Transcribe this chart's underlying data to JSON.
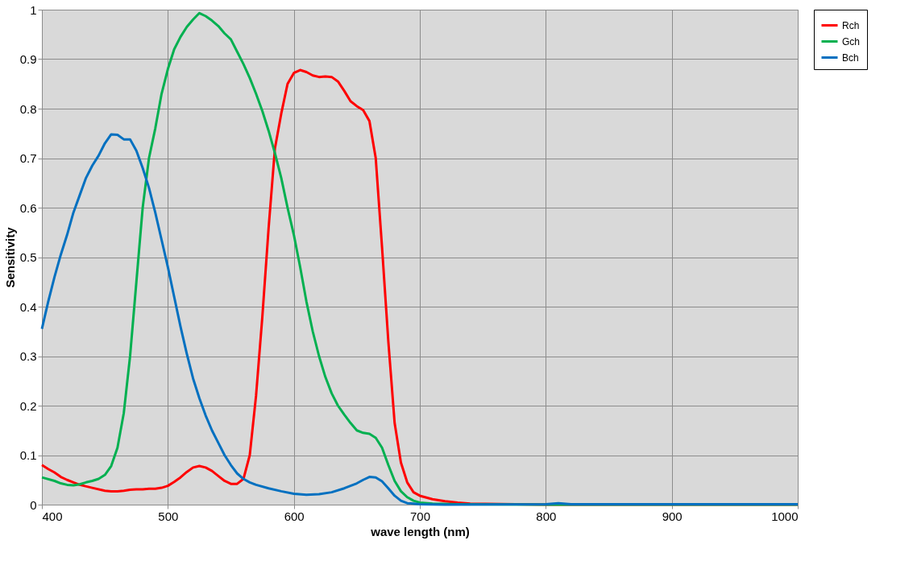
{
  "chart_data": {
    "type": "line",
    "xlabel": "wave length (nm)",
    "ylabel": "Sensitivity",
    "xlim": [
      400,
      1000
    ],
    "xticks": [
      400,
      500,
      600,
      700,
      800,
      900,
      1000
    ],
    "ylim": [
      0,
      1
    ],
    "yticks": [
      0,
      0.1,
      0.2,
      0.3,
      0.4,
      0.5,
      0.6,
      0.7,
      0.8,
      0.9,
      1
    ],
    "grid": true,
    "legend": "right",
    "marker": "none",
    "line_style": "solid",
    "series": [
      {
        "name": "Rch",
        "color": "#ff0000",
        "x": [
          400,
          405,
          410,
          415,
          420,
          425,
          430,
          440,
          450,
          455,
          460,
          465,
          470,
          475,
          480,
          485,
          490,
          495,
          500,
          505,
          510,
          515,
          520,
          525,
          530,
          535,
          540,
          545,
          550,
          555,
          560,
          565,
          570,
          575,
          580,
          585,
          590,
          595,
          600,
          605,
          610,
          615,
          620,
          625,
          630,
          635,
          640,
          645,
          650,
          655,
          660,
          665,
          670,
          675,
          680,
          685,
          690,
          695,
          700,
          710,
          720,
          730,
          740,
          800,
          1000
        ],
        "values": [
          0.08,
          0.072,
          0.065,
          0.056,
          0.05,
          0.045,
          0.04,
          0.034,
          0.028,
          0.027,
          0.027,
          0.028,
          0.03,
          0.031,
          0.031,
          0.032,
          0.032,
          0.034,
          0.038,
          0.046,
          0.055,
          0.066,
          0.075,
          0.078,
          0.075,
          0.068,
          0.058,
          0.048,
          0.042,
          0.042,
          0.052,
          0.1,
          0.22,
          0.38,
          0.56,
          0.72,
          0.79,
          0.85,
          0.872,
          0.878,
          0.874,
          0.867,
          0.864,
          0.865,
          0.864,
          0.855,
          0.836,
          0.815,
          0.805,
          0.797,
          0.775,
          0.7,
          0.52,
          0.33,
          0.165,
          0.085,
          0.045,
          0.025,
          0.018,
          0.011,
          0.007,
          0.004,
          0.002,
          0,
          0
        ]
      },
      {
        "name": "Gch",
        "color": "#00b050",
        "x": [
          400,
          410,
          415,
          420,
          425,
          430,
          435,
          440,
          445,
          450,
          455,
          460,
          465,
          470,
          475,
          480,
          485,
          490,
          495,
          500,
          505,
          510,
          515,
          520,
          525,
          530,
          535,
          540,
          545,
          550,
          555,
          560,
          565,
          570,
          575,
          580,
          585,
          590,
          595,
          600,
          605,
          610,
          615,
          620,
          625,
          630,
          635,
          640,
          645,
          650,
          655,
          660,
          665,
          670,
          675,
          680,
          685,
          690,
          695,
          700,
          710,
          730,
          800,
          1000
        ],
        "values": [
          0.055,
          0.048,
          0.043,
          0.04,
          0.039,
          0.041,
          0.045,
          0.048,
          0.052,
          0.06,
          0.078,
          0.115,
          0.185,
          0.3,
          0.45,
          0.6,
          0.7,
          0.76,
          0.83,
          0.88,
          0.92,
          0.945,
          0.965,
          0.98,
          0.993,
          0.987,
          0.978,
          0.967,
          0.952,
          0.94,
          0.915,
          0.89,
          0.862,
          0.83,
          0.795,
          0.755,
          0.71,
          0.66,
          0.6,
          0.545,
          0.48,
          0.41,
          0.35,
          0.3,
          0.258,
          0.225,
          0.2,
          0.182,
          0.165,
          0.15,
          0.145,
          0.143,
          0.135,
          0.115,
          0.08,
          0.048,
          0.027,
          0.015,
          0.008,
          0.004,
          0.002,
          0.001,
          0,
          0
        ]
      },
      {
        "name": "Bch",
        "color": "#0070c0",
        "x": [
          400,
          405,
          410,
          415,
          420,
          425,
          430,
          435,
          440,
          445,
          450,
          455,
          460,
          465,
          470,
          475,
          480,
          485,
          490,
          495,
          500,
          505,
          510,
          515,
          520,
          525,
          530,
          535,
          540,
          545,
          550,
          555,
          560,
          565,
          570,
          580,
          590,
          600,
          610,
          620,
          630,
          640,
          650,
          655,
          660,
          665,
          670,
          675,
          680,
          685,
          690,
          700,
          720,
          800,
          810,
          820,
          850,
          900,
          1000
        ],
        "values": [
          0.355,
          0.41,
          0.46,
          0.505,
          0.545,
          0.59,
          0.625,
          0.66,
          0.685,
          0.705,
          0.73,
          0.748,
          0.747,
          0.738,
          0.738,
          0.715,
          0.68,
          0.64,
          0.59,
          0.535,
          0.48,
          0.42,
          0.36,
          0.305,
          0.255,
          0.215,
          0.18,
          0.15,
          0.125,
          0.1,
          0.08,
          0.063,
          0.052,
          0.045,
          0.04,
          0.033,
          0.027,
          0.022,
          0.02,
          0.021,
          0.025,
          0.033,
          0.043,
          0.05,
          0.056,
          0.055,
          0.047,
          0.033,
          0.018,
          0.008,
          0.003,
          0.001,
          0,
          0.001,
          0.003,
          0.001,
          0.001,
          0.001,
          0.001
        ]
      }
    ]
  }
}
